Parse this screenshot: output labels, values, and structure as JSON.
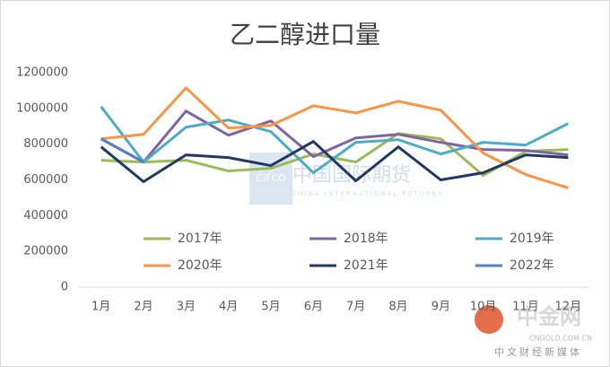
{
  "chart_data": {
    "type": "line",
    "title": "乙二醇进口量",
    "categories": [
      "1月",
      "2月",
      "3月",
      "4月",
      "5月",
      "6月",
      "7月",
      "8月",
      "9月",
      "10月",
      "11月",
      "12月"
    ],
    "ylim": [
      0,
      1200000
    ],
    "yticks": [
      0,
      200000,
      400000,
      600000,
      800000,
      1000000,
      1200000
    ],
    "series": [
      {
        "name": "2017年",
        "color": "#9bbb59",
        "values": [
          710000,
          700000,
          710000,
          650000,
          665000,
          745000,
          700000,
          860000,
          830000,
          625000,
          760000,
          770000
        ]
      },
      {
        "name": "2018年",
        "color": "#8064a2",
        "values": [
          830000,
          700000,
          985000,
          850000,
          930000,
          730000,
          835000,
          855000,
          810000,
          770000,
          765000,
          740000
        ]
      },
      {
        "name": "2019年",
        "color": "#4bacc6",
        "values": [
          1010000,
          700000,
          895000,
          935000,
          870000,
          640000,
          810000,
          825000,
          745000,
          810000,
          795000,
          915000
        ]
      },
      {
        "name": "2020年",
        "color": "#f79646",
        "values": [
          830000,
          855000,
          1115000,
          890000,
          905000,
          1015000,
          975000,
          1040000,
          990000,
          750000,
          630000,
          555000
        ]
      },
      {
        "name": "2021年",
        "color": "#1f3864",
        "values": [
          785000,
          590000,
          740000,
          725000,
          680000,
          815000,
          595000,
          785000,
          600000,
          640000,
          740000,
          725000
        ]
      },
      {
        "name": "2022年",
        "color": "#4f81bd",
        "values": [
          830000,
          700000,
          null,
          null,
          null,
          null,
          null,
          null,
          null,
          null,
          null,
          null
        ]
      }
    ],
    "annotations": [
      "CIFCO",
      "中国国际期货",
      "CHINA INTERNATIONAL FUTURES",
      "中金网",
      "CNGOLD.COM.CN",
      "中文财经新媒体"
    ]
  }
}
